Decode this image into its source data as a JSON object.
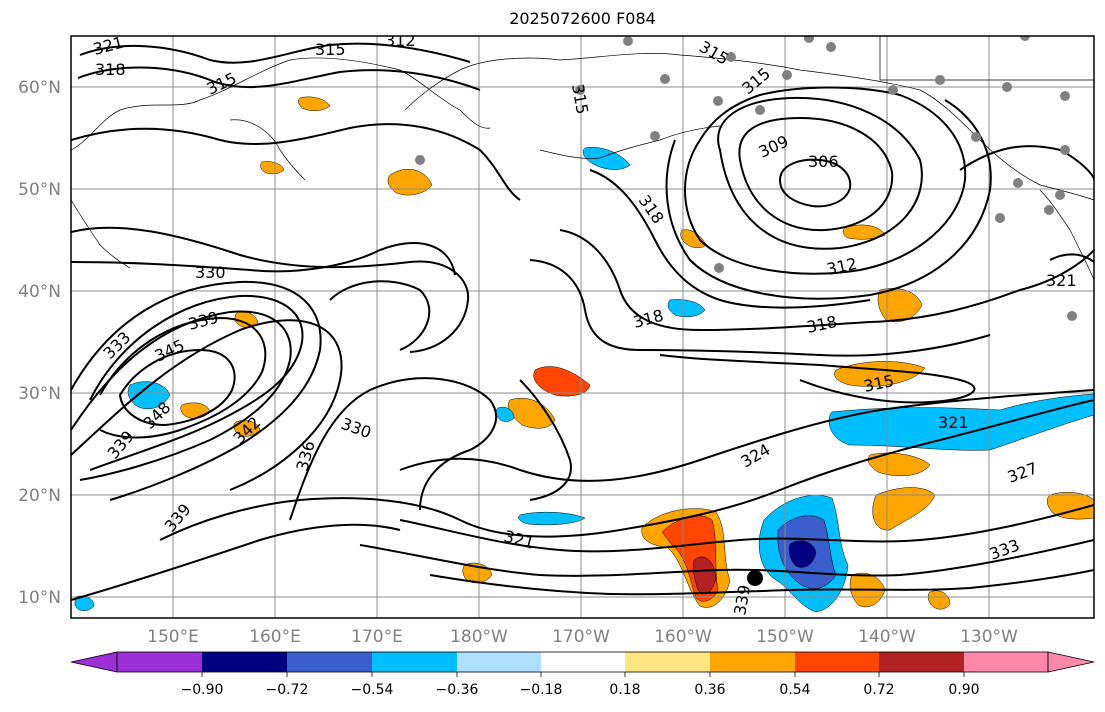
{
  "title": "2025072600 F084",
  "lat_labels": [
    "60°N",
    "50°N",
    "40°N",
    "30°N",
    "20°N",
    "10°N"
  ],
  "lon_labels": [
    "150°E",
    "160°E",
    "170°E",
    "180°W",
    "170°W",
    "160°W",
    "150°W",
    "140°W",
    "130°W"
  ],
  "colorbar": {
    "ticks": [
      "−0.90",
      "−0.72",
      "−0.54",
      "−0.36",
      "−0.18",
      "0.18",
      "0.36",
      "0.54",
      "0.72",
      "0.90"
    ],
    "colors": [
      "#9b30d6",
      "#000080",
      "#3a5fcd",
      "#00bfff",
      "#b0e0ff",
      "#ffffff",
      "#ffe680",
      "#ffa500",
      "#ff4500",
      "#b22222",
      "#ff88aa"
    ]
  },
  "contour_labels": [
    {
      "text": "321"
    },
    {
      "text": "318"
    },
    {
      "text": "315"
    },
    {
      "text": "315"
    },
    {
      "text": "312"
    },
    {
      "text": "315"
    },
    {
      "text": "315"
    },
    {
      "text": "315"
    },
    {
      "text": "309"
    },
    {
      "text": "306"
    },
    {
      "text": "318"
    },
    {
      "text": "312"
    },
    {
      "text": "330"
    },
    {
      "text": "339"
    },
    {
      "text": "333"
    },
    {
      "text": "345"
    },
    {
      "text": "348"
    },
    {
      "text": "339"
    },
    {
      "text": "342"
    },
    {
      "text": "336"
    },
    {
      "text": "330"
    },
    {
      "text": "318"
    },
    {
      "text": "318"
    },
    {
      "text": "315"
    },
    {
      "text": "321"
    },
    {
      "text": "324"
    },
    {
      "text": "327"
    },
    {
      "text": "321"
    },
    {
      "text": "333"
    },
    {
      "text": "339"
    },
    {
      "text": "339"
    },
    {
      "text": "321"
    }
  ],
  "colors": {
    "frame": "#000000",
    "grid": "#8c8c8c",
    "contour": "#000000",
    "station": "#808080"
  }
}
